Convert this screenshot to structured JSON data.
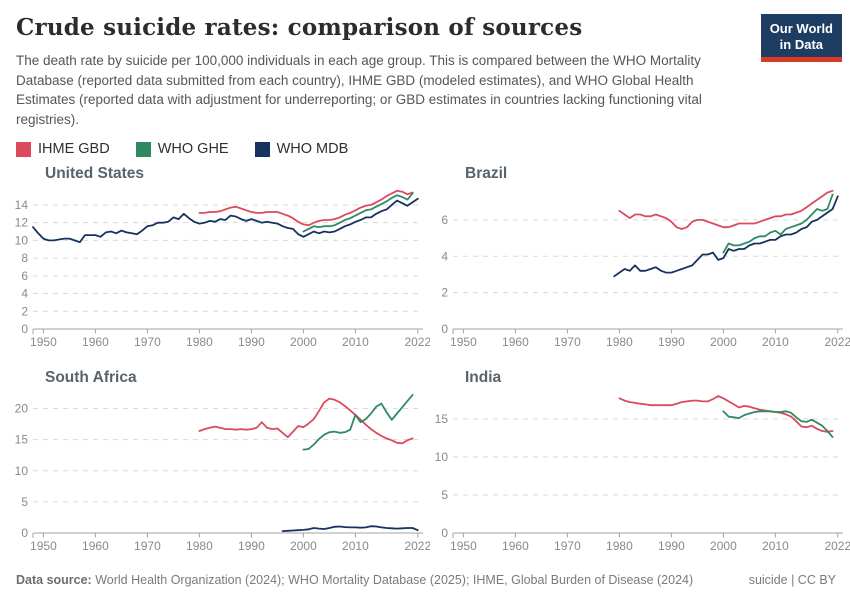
{
  "header": {
    "title": "Crude suicide rates: comparison of sources",
    "subtitle": "The death rate by suicide per 100,000 individuals in each age group. This is compared between the WHO Mortality Database (reported data submitted from each country), IHME GBD (modeled estimates), and WHO Global Health Estimates (reported data with adjustment for underreporting; or GBD estimates in countries lacking functioning vital registries).",
    "logo": {
      "line1": "Our World",
      "line2": "in Data",
      "bg_color": "#1d3d63",
      "bar_color": "#d93a24"
    }
  },
  "legend": {
    "items": [
      {
        "label": "IHME GBD",
        "color": "#db4a5d"
      },
      {
        "label": "WHO GHE",
        "color": "#2f8a63"
      },
      {
        "label": "WHO MDB",
        "color": "#14335f"
      }
    ]
  },
  "chart_data": [
    {
      "type": "line",
      "title": "United States",
      "x_range": [
        1948,
        2023
      ],
      "x_ticks": [
        1950,
        1960,
        1970,
        1980,
        1990,
        2000,
        2010,
        2022
      ],
      "y_range": [
        0,
        15.8
      ],
      "y_ticks": [
        0,
        2,
        4,
        6,
        8,
        10,
        12,
        14
      ],
      "series": [
        {
          "name": "IHME GBD",
          "color": "#db4a5d",
          "start_year": 1980,
          "values": [
            13.1,
            13.1,
            13.2,
            13.2,
            13.3,
            13.5,
            13.7,
            13.8,
            13.6,
            13.4,
            13.2,
            13.1,
            13.1,
            13.2,
            13.2,
            13.2,
            13.0,
            12.8,
            12.5,
            12.1,
            11.8,
            11.7,
            12.0,
            12.2,
            12.3,
            12.3,
            12.4,
            12.6,
            12.9,
            13.1,
            13.4,
            13.7,
            13.9,
            14.0,
            14.3,
            14.6,
            15.0,
            15.3,
            15.6,
            15.5,
            15.2,
            15.4
          ]
        },
        {
          "name": "WHO GHE",
          "color": "#2f8a63",
          "start_year": 2000,
          "values": [
            11.0,
            11.3,
            11.6,
            11.5,
            11.6,
            11.6,
            11.7,
            12.0,
            12.3,
            12.5,
            12.8,
            13.1,
            13.4,
            13.5,
            13.8,
            14.1,
            14.4,
            14.8,
            15.1,
            14.9,
            14.6,
            15.3
          ]
        },
        {
          "name": "WHO MDB",
          "color": "#14335f",
          "start_year": 1948,
          "values": [
            11.5,
            10.8,
            10.2,
            10.0,
            10.0,
            10.1,
            10.2,
            10.2,
            10.0,
            9.8,
            10.6,
            10.6,
            10.6,
            10.4,
            10.9,
            11.0,
            10.8,
            11.1,
            10.9,
            10.8,
            10.7,
            11.1,
            11.6,
            11.7,
            12.0,
            12.0,
            12.1,
            12.6,
            12.4,
            13.0,
            12.5,
            12.1,
            11.9,
            12.0,
            12.2,
            12.1,
            12.4,
            12.3,
            12.8,
            12.7,
            12.4,
            12.2,
            12.4,
            12.2,
            12.0,
            12.1,
            12.0,
            11.9,
            11.6,
            11.4,
            11.3,
            10.7,
            10.4,
            10.7,
            11.0,
            10.8,
            11.0,
            10.9,
            11.0,
            11.3,
            11.6,
            11.8,
            12.1,
            12.3,
            12.6,
            12.6,
            13.0,
            13.3,
            13.5,
            14.0,
            14.5,
            14.2,
            13.9,
            14.3,
            14.7
          ]
        }
      ]
    },
    {
      "type": "line",
      "title": "Brazil",
      "x_range": [
        1948,
        2023
      ],
      "x_ticks": [
        1950,
        1960,
        1970,
        1980,
        1990,
        2000,
        2010,
        2022
      ],
      "y_range": [
        0,
        7.7
      ],
      "y_ticks": [
        0,
        2,
        4,
        6
      ],
      "series": [
        {
          "name": "IHME GBD",
          "color": "#db4a5d",
          "start_year": 1980,
          "values": [
            6.5,
            6.3,
            6.1,
            6.3,
            6.3,
            6.2,
            6.2,
            6.3,
            6.2,
            6.1,
            5.9,
            5.6,
            5.5,
            5.6,
            5.9,
            6.0,
            6.0,
            5.9,
            5.8,
            5.7,
            5.6,
            5.6,
            5.7,
            5.8,
            5.8,
            5.8,
            5.8,
            5.9,
            6.0,
            6.1,
            6.2,
            6.2,
            6.3,
            6.3,
            6.4,
            6.5,
            6.7,
            6.9,
            7.1,
            7.3,
            7.5,
            7.6
          ]
        },
        {
          "name": "WHO GHE",
          "color": "#2f8a63",
          "start_year": 2000,
          "values": [
            4.2,
            4.7,
            4.6,
            4.6,
            4.7,
            4.8,
            5.0,
            5.1,
            5.1,
            5.3,
            5.4,
            5.2,
            5.5,
            5.6,
            5.7,
            5.8,
            6.0,
            6.3,
            6.6,
            6.5,
            6.6,
            7.4
          ]
        },
        {
          "name": "WHO MDB",
          "color": "#14335f",
          "start_year": 1979,
          "values": [
            2.9,
            3.1,
            3.3,
            3.2,
            3.5,
            3.2,
            3.2,
            3.3,
            3.4,
            3.2,
            3.1,
            3.1,
            3.2,
            3.3,
            3.4,
            3.5,
            3.8,
            4.1,
            4.1,
            4.2,
            3.8,
            3.9,
            4.4,
            4.3,
            4.4,
            4.4,
            4.6,
            4.7,
            4.7,
            4.8,
            4.9,
            4.9,
            5.1,
            5.2,
            5.2,
            5.3,
            5.5,
            5.6,
            5.9,
            6.0,
            6.2,
            6.4,
            6.6,
            7.3
          ]
        }
      ]
    },
    {
      "type": "line",
      "title": "South Africa",
      "x_range": [
        1948,
        2023
      ],
      "x_ticks": [
        1950,
        1960,
        1970,
        1980,
        1990,
        2000,
        2010,
        2022
      ],
      "y_range": [
        0,
        22.5
      ],
      "y_ticks": [
        0,
        5,
        10,
        15,
        20
      ],
      "series": [
        {
          "name": "IHME GBD",
          "color": "#db4a5d",
          "start_year": 1980,
          "values": [
            16.4,
            16.7,
            16.9,
            17.1,
            16.9,
            16.7,
            16.7,
            16.6,
            16.7,
            16.6,
            16.7,
            16.9,
            17.8,
            16.9,
            16.7,
            16.8,
            16.1,
            15.4,
            16.3,
            17.2,
            17.0,
            17.6,
            18.3,
            19.6,
            21.0,
            21.6,
            21.4,
            21.0,
            20.4,
            19.7,
            19.0,
            18.2,
            17.4,
            16.7,
            16.1,
            15.6,
            15.2,
            14.9,
            14.5,
            14.4,
            14.9,
            15.2
          ]
        },
        {
          "name": "WHO GHE",
          "color": "#2f8a63",
          "start_year": 2000,
          "values": [
            13.4,
            13.5,
            14.2,
            15.1,
            15.8,
            16.2,
            16.3,
            16.1,
            16.2,
            16.6,
            19.0,
            17.8,
            18.3,
            19.2,
            20.3,
            20.8,
            19.4,
            18.2,
            19.2,
            20.2,
            21.2,
            22.2
          ]
        },
        {
          "name": "WHO MDB",
          "color": "#14335f",
          "start_year": 1996,
          "values": [
            0.3,
            0.35,
            0.4,
            0.45,
            0.5,
            0.6,
            0.8,
            0.7,
            0.65,
            0.8,
            1.0,
            1.05,
            0.95,
            0.9,
            0.9,
            0.85,
            0.9,
            1.1,
            1.05,
            0.9,
            0.8,
            0.75,
            0.7,
            0.75,
            0.8,
            0.8,
            0.45
          ]
        }
      ]
    },
    {
      "type": "line",
      "title": "India",
      "x_range": [
        1948,
        2023
      ],
      "x_ticks": [
        1950,
        1960,
        1970,
        1980,
        1990,
        2000,
        2010,
        2022
      ],
      "y_range": [
        0,
        18.4
      ],
      "y_ticks": [
        0,
        5,
        10,
        15
      ],
      "series": [
        {
          "name": "IHME GBD",
          "color": "#db4a5d",
          "start_year": 1980,
          "values": [
            17.7,
            17.4,
            17.2,
            17.1,
            17.0,
            16.9,
            16.8,
            16.8,
            16.8,
            16.8,
            16.8,
            17.0,
            17.2,
            17.3,
            17.4,
            17.4,
            17.3,
            17.3,
            17.6,
            18.0,
            17.7,
            17.3,
            16.9,
            16.5,
            16.7,
            16.6,
            16.4,
            16.2,
            16.1,
            16.0,
            15.9,
            15.8,
            15.6,
            15.3,
            14.7,
            14.0,
            13.9,
            14.1,
            13.7,
            13.4,
            13.3,
            13.4
          ]
        },
        {
          "name": "WHO GHE",
          "color": "#2f8a63",
          "start_year": 2000,
          "values": [
            16.0,
            15.3,
            15.2,
            15.1,
            15.5,
            15.7,
            15.9,
            16.0,
            16.0,
            16.0,
            15.9,
            15.9,
            16.0,
            15.8,
            15.2,
            14.7,
            14.6,
            14.9,
            14.5,
            14.1,
            13.4,
            12.6
          ]
        }
      ]
    }
  ],
  "footer": {
    "datasource_label": "Data source:",
    "datasource_text": " World Health Organization (2024); WHO Mortality Database (2025); IHME, Global Burden of Disease (2024)",
    "right_text": "suicide | CC BY"
  }
}
